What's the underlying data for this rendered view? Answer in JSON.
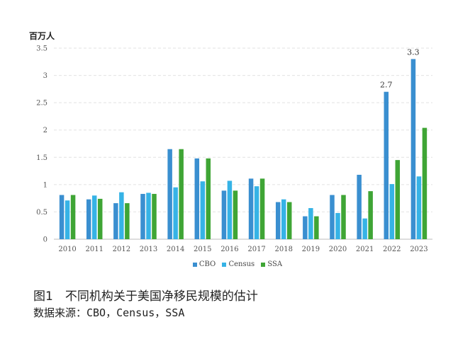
{
  "chart_data": {
    "type": "bar",
    "unit_label": "百万人",
    "categories": [
      "2010",
      "2011",
      "2012",
      "2013",
      "2014",
      "2015",
      "2016",
      "2017",
      "2018",
      "2019",
      "2020",
      "2021",
      "2022",
      "2023"
    ],
    "series": [
      {
        "name": "CBO",
        "color": "#3a8fd0",
        "values": [
          0.81,
          0.73,
          0.66,
          0.83,
          1.65,
          1.48,
          0.89,
          1.11,
          0.68,
          0.42,
          0.81,
          1.18,
          2.7,
          3.3
        ]
      },
      {
        "name": "Census",
        "color": "#36b3e6",
        "values": [
          0.71,
          0.8,
          0.86,
          0.85,
          0.95,
          1.06,
          1.07,
          0.97,
          0.73,
          0.57,
          0.48,
          0.38,
          1.01,
          1.15
        ]
      },
      {
        "name": "SSA",
        "color": "#3fa535",
        "values": [
          0.81,
          0.74,
          0.66,
          0.83,
          1.65,
          1.48,
          0.89,
          1.11,
          0.68,
          0.42,
          0.81,
          0.88,
          1.45,
          2.04
        ]
      }
    ],
    "yticks": [
      "0",
      "0.5",
      "1",
      "1.5",
      "2",
      "2.5",
      "3",
      "3.5"
    ],
    "ylim": [
      0,
      3.5
    ],
    "data_labels": [
      {
        "category": "2022",
        "series": "CBO",
        "text": "2.7"
      },
      {
        "category": "2023",
        "series": "CBO",
        "text": "3.3"
      }
    ],
    "grid": true,
    "legend_position": "bottom"
  },
  "caption": {
    "title": "图1　不同机构关于美国净移民规模的估计",
    "source": "数据来源：CBO，Census，SSA"
  }
}
